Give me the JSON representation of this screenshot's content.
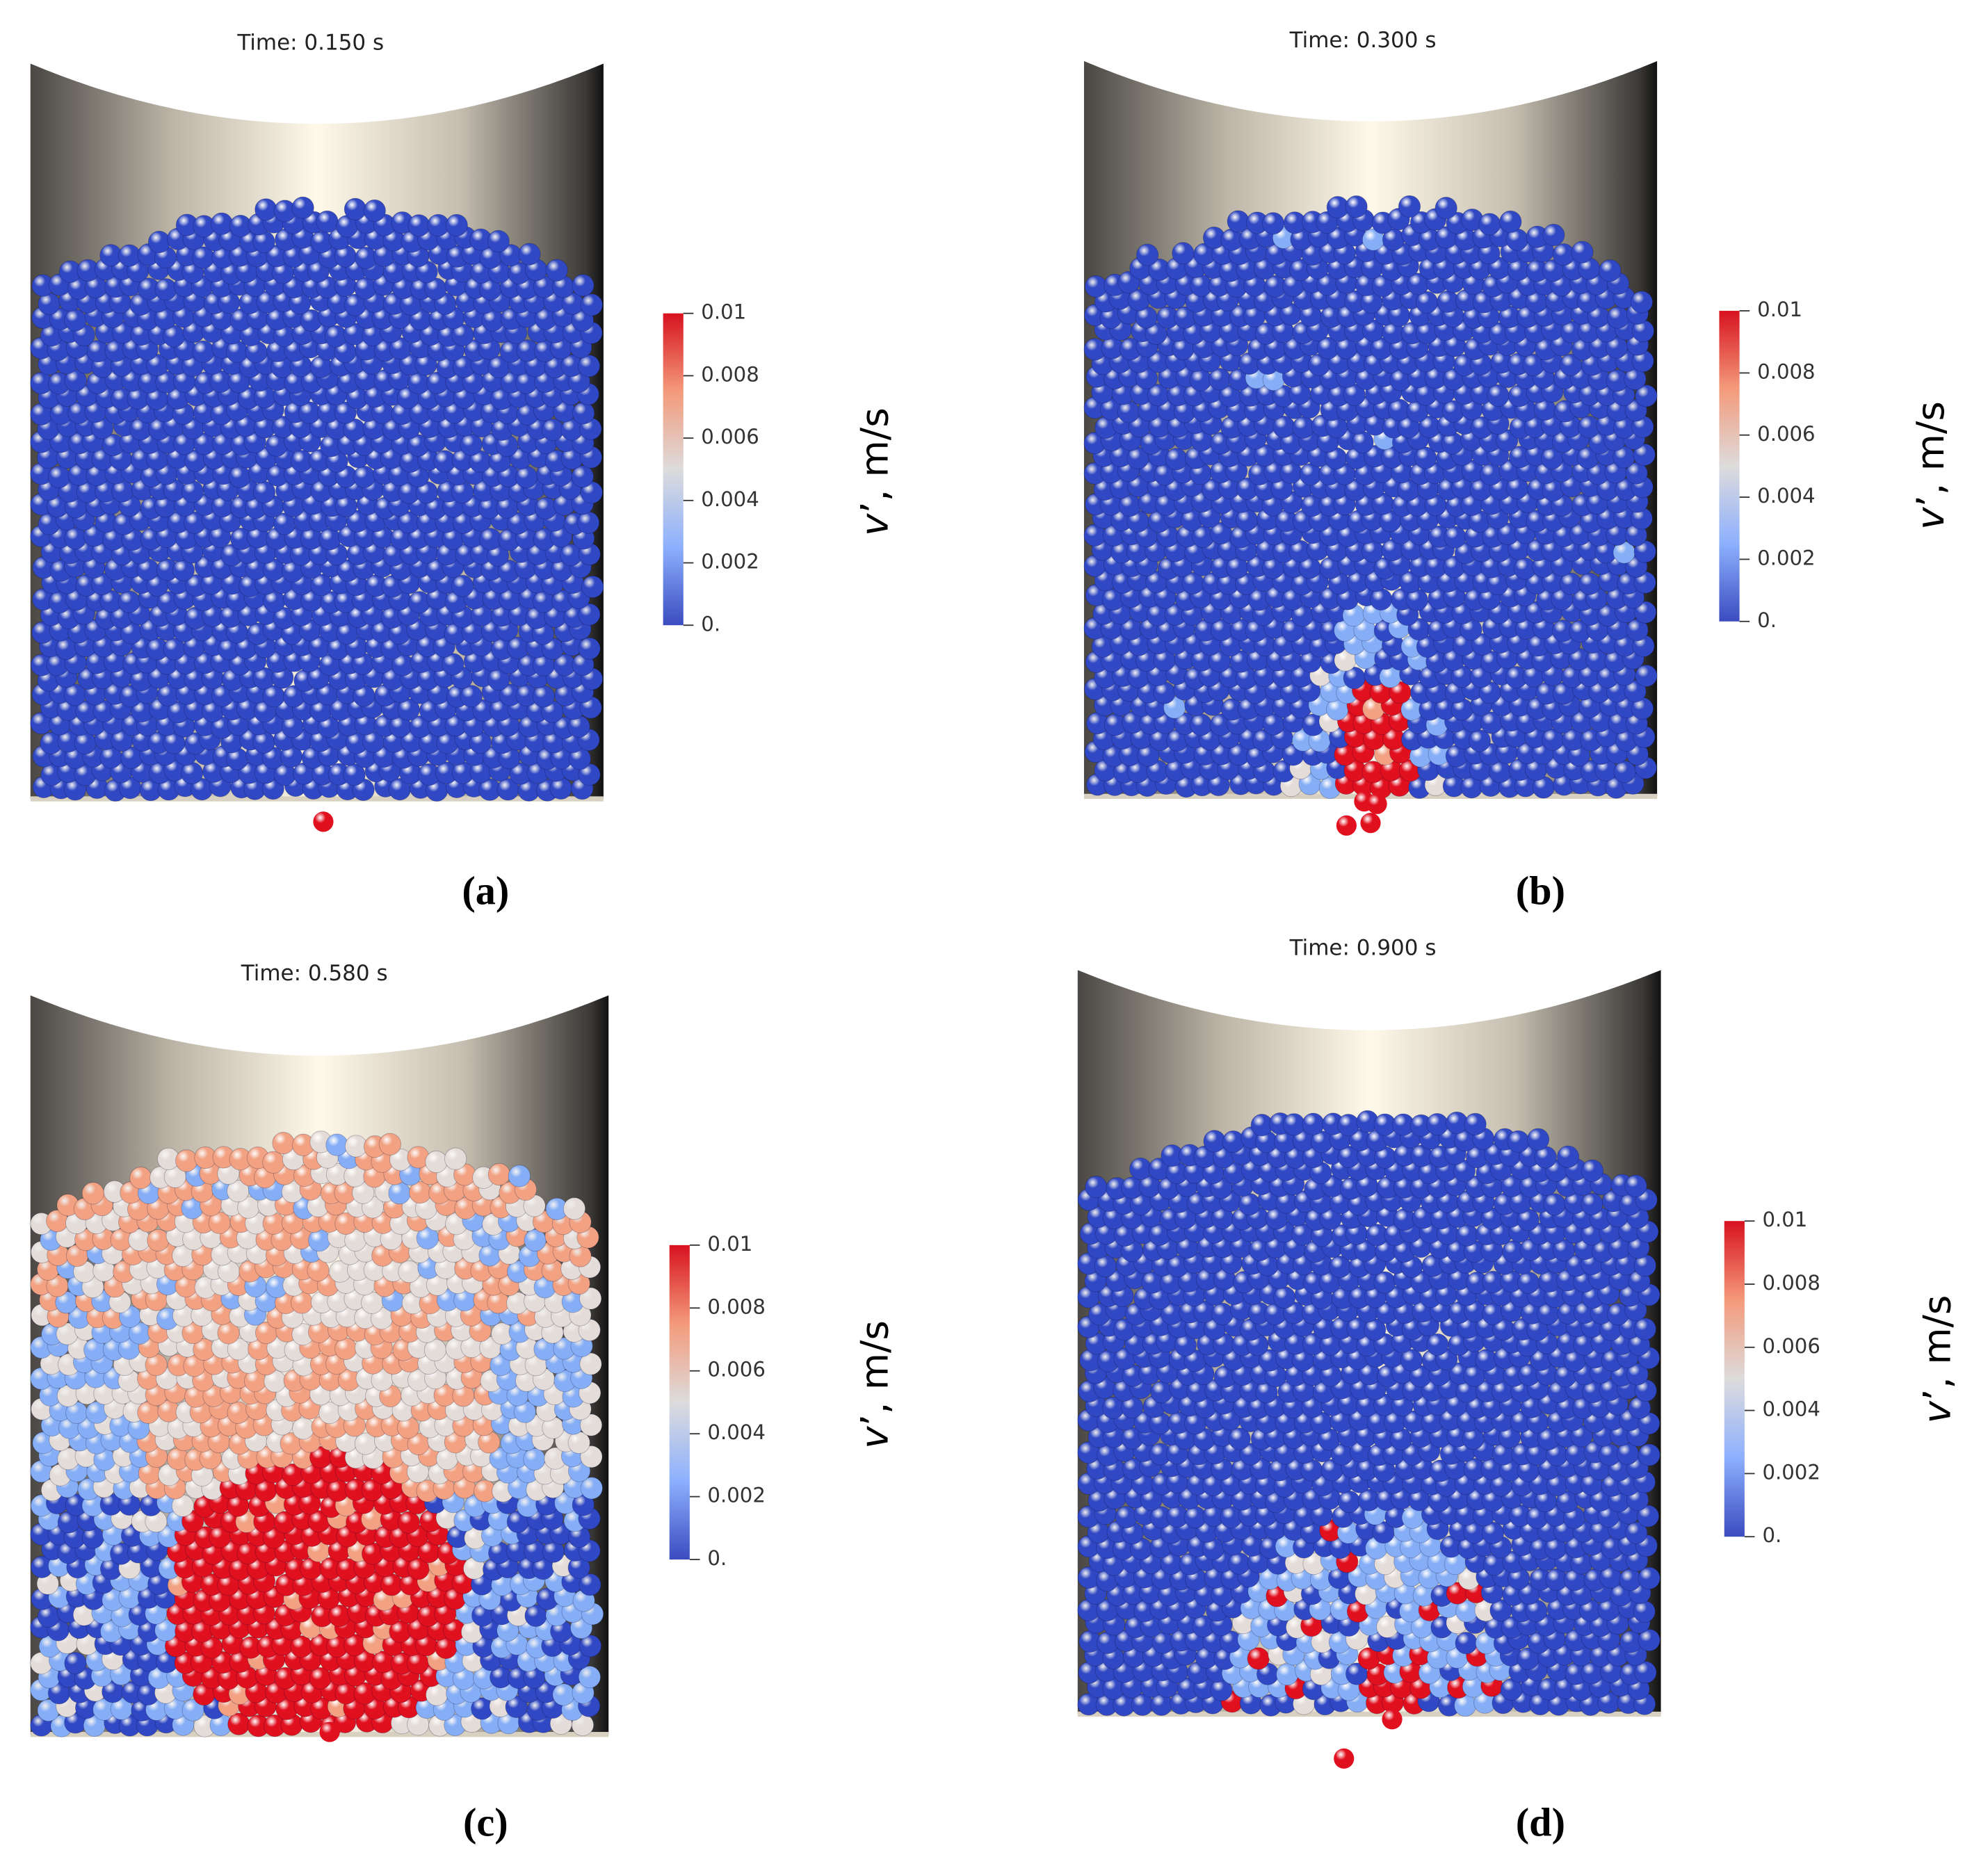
{
  "panels": [
    {
      "time": "Time: 0.150 s",
      "caption": "(a)",
      "label": {
        "symbol": "v",
        "rest": "’, m/s"
      },
      "colorbar": {
        "lim": [
          0,
          0.01
        ],
        "ticks": [
          {
            "value": 0,
            "label": "0."
          },
          0.002,
          0.004,
          0.006,
          0.008,
          0.01
        ]
      }
    },
    {
      "time": "Time: 0.300 s",
      "caption": "(b)",
      "label": {
        "symbol": "v",
        "rest": "’, m/s"
      },
      "colorbar": {
        "lim": [
          0,
          0.01
        ],
        "ticks": [
          {
            "value": 0,
            "label": "0."
          },
          0.002,
          0.004,
          0.006,
          0.008,
          0.01
        ]
      }
    },
    {
      "time": "Time: 0.580 s",
      "caption": "(c)",
      "label": {
        "symbol": "v",
        "rest": "’, m/s"
      },
      "colorbar": {
        "lim": [
          0,
          0.01
        ],
        "ticks": [
          {
            "value": 0,
            "label": "0."
          },
          0.002,
          0.004,
          0.006,
          0.008,
          0.01
        ]
      }
    },
    {
      "time": "Time: 0.900 s",
      "caption": "(d)",
      "label": {
        "symbol": "v",
        "rest": "’, m/s"
      },
      "colorbar": {
        "lim": [
          0,
          0.01
        ],
        "ticks": [
          {
            "value": 0,
            "label": "0."
          },
          0.002,
          0.004,
          0.006,
          0.008,
          0.01
        ]
      }
    }
  ]
}
